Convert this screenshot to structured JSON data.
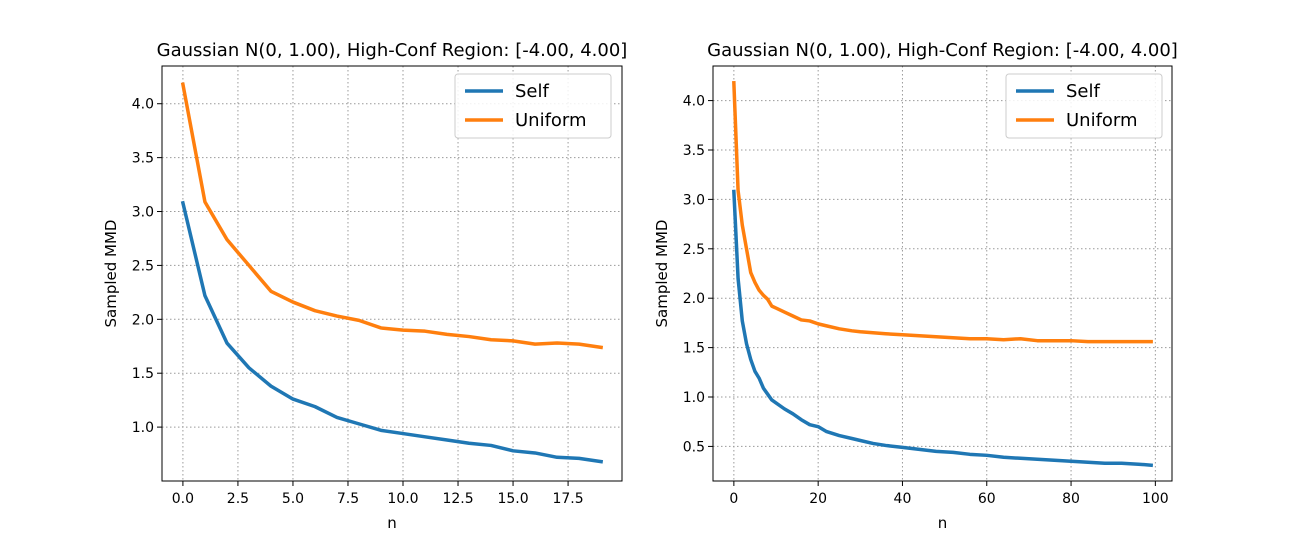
{
  "colors": {
    "self": "#1f77b4",
    "uniform": "#ff7f0e",
    "grid": "#9a9a9a"
  },
  "chart_data": [
    {
      "type": "line",
      "title": "Gaussian N(0, 1.00), High-Conf Region: [-4.00, 4.00]",
      "xlabel": "n",
      "ylabel": "Sampled MMD",
      "xlim": [
        -0.95,
        19.95
      ],
      "ylim": [
        0.5,
        4.35
      ],
      "xticks": [
        0,
        2.5,
        5,
        7.5,
        10,
        12.5,
        15,
        17.5
      ],
      "xtick_labels": [
        "0.0",
        "2.5",
        "5.0",
        "7.5",
        "10.0",
        "12.5",
        "15.0",
        "17.5"
      ],
      "yticks": [
        1.0,
        1.5,
        2.0,
        2.5,
        3.0,
        3.5,
        4.0
      ],
      "ytick_labels": [
        "1.0",
        "1.5",
        "2.0",
        "2.5",
        "3.0",
        "3.5",
        "4.0"
      ],
      "grid": true,
      "legend_position": "top-right",
      "series": [
        {
          "name": "Self",
          "x": [
            0,
            1,
            2,
            3,
            4,
            5,
            6,
            7,
            8,
            9,
            10,
            11,
            12,
            13,
            14,
            15,
            16,
            17,
            18,
            19
          ],
          "values": [
            3.08,
            2.22,
            1.78,
            1.55,
            1.38,
            1.26,
            1.19,
            1.09,
            1.03,
            0.97,
            0.94,
            0.91,
            0.88,
            0.85,
            0.83,
            0.78,
            0.76,
            0.72,
            0.71,
            0.68
          ]
        },
        {
          "name": "Uniform",
          "x": [
            0,
            1,
            2,
            3,
            4,
            5,
            6,
            7,
            8,
            9,
            10,
            11,
            12,
            13,
            14,
            15,
            16,
            17,
            18,
            19
          ],
          "values": [
            4.18,
            3.09,
            2.74,
            2.5,
            2.26,
            2.16,
            2.08,
            2.03,
            1.99,
            1.92,
            1.9,
            1.89,
            1.86,
            1.84,
            1.81,
            1.8,
            1.77,
            1.78,
            1.77,
            1.74
          ]
        }
      ]
    },
    {
      "type": "line",
      "title": "Gaussian N(0, 1.00), High-Conf Region: [-4.00, 4.00]",
      "xlabel": "n",
      "ylabel": "Sampled MMD",
      "xlim": [
        -4.95,
        103.95
      ],
      "ylim": [
        0.15,
        4.35
      ],
      "xticks": [
        0,
        20,
        40,
        60,
        80,
        100
      ],
      "xtick_labels": [
        "0",
        "20",
        "40",
        "60",
        "80",
        "100"
      ],
      "yticks": [
        0.5,
        1.0,
        1.5,
        2.0,
        2.5,
        3.0,
        3.5,
        4.0
      ],
      "ytick_labels": [
        "0.5",
        "1.0",
        "1.5",
        "2.0",
        "2.5",
        "3.0",
        "3.5",
        "4.0"
      ],
      "grid": true,
      "legend_position": "top-right",
      "series": [
        {
          "name": "Self",
          "x": [
            0,
            1,
            2,
            3,
            4,
            5,
            6,
            7,
            8,
            9,
            10,
            12,
            14,
            16,
            18,
            20,
            22,
            25,
            28,
            30,
            33,
            36,
            40,
            44,
            48,
            52,
            56,
            60,
            64,
            68,
            72,
            76,
            80,
            84,
            88,
            92,
            96,
            99
          ],
          "values": [
            3.08,
            2.2,
            1.77,
            1.54,
            1.38,
            1.26,
            1.19,
            1.09,
            1.03,
            0.97,
            0.94,
            0.88,
            0.83,
            0.77,
            0.72,
            0.7,
            0.65,
            0.61,
            0.58,
            0.56,
            0.53,
            0.51,
            0.49,
            0.47,
            0.45,
            0.44,
            0.42,
            0.41,
            0.39,
            0.38,
            0.37,
            0.36,
            0.35,
            0.34,
            0.33,
            0.33,
            0.32,
            0.31
          ]
        },
        {
          "name": "Uniform",
          "x": [
            0,
            1,
            2,
            3,
            4,
            5,
            6,
            7,
            8,
            9,
            10,
            12,
            14,
            16,
            18,
            20,
            22,
            25,
            28,
            30,
            33,
            36,
            40,
            44,
            48,
            52,
            56,
            60,
            64,
            68,
            72,
            76,
            80,
            84,
            88,
            92,
            96,
            99
          ],
          "values": [
            4.18,
            3.09,
            2.74,
            2.5,
            2.26,
            2.16,
            2.08,
            2.03,
            1.99,
            1.92,
            1.9,
            1.86,
            1.82,
            1.78,
            1.77,
            1.74,
            1.72,
            1.69,
            1.67,
            1.66,
            1.65,
            1.64,
            1.63,
            1.62,
            1.61,
            1.6,
            1.59,
            1.59,
            1.58,
            1.59,
            1.57,
            1.57,
            1.57,
            1.56,
            1.56,
            1.56,
            1.56,
            1.56
          ]
        }
      ]
    }
  ]
}
